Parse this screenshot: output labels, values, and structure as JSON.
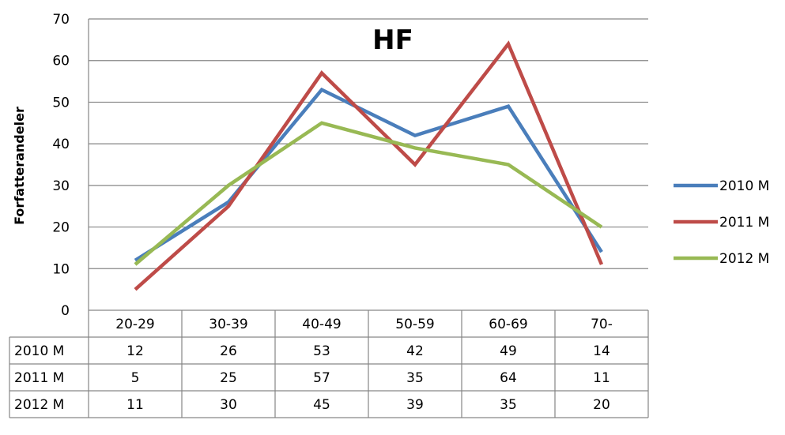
{
  "chart_data": {
    "type": "line",
    "title": "HF",
    "xlabel": "",
    "ylabel": "Forfatterandeler",
    "ylim": [
      0,
      70
    ],
    "yticks": [
      0,
      10,
      20,
      30,
      40,
      50,
      60,
      70
    ],
    "grid": true,
    "legend": "right",
    "categories": [
      "20-29",
      "30-39",
      "40-49",
      "50-59",
      "60-69",
      "70-"
    ],
    "series": [
      {
        "name": "2010 M",
        "color": "#4a7ebb",
        "values": [
          12,
          26,
          53,
          42,
          49,
          14
        ]
      },
      {
        "name": "2011 M",
        "color": "#be4b48",
        "values": [
          5,
          25,
          57,
          35,
          64,
          11
        ]
      },
      {
        "name": "2012 M",
        "color": "#98b954",
        "values": [
          11,
          30,
          45,
          39,
          35,
          20
        ]
      }
    ],
    "data_table": true
  }
}
